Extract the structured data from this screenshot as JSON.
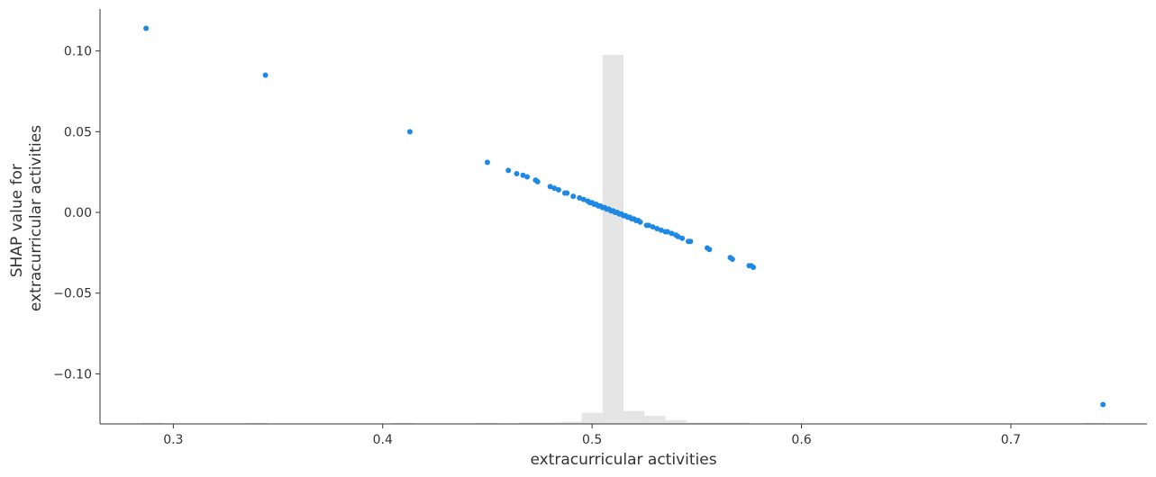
{
  "chart_data": {
    "type": "scatter",
    "xlabel": "extracurricular activities",
    "ylabel_lines": [
      "SHAP value for",
      "extracurricular activities"
    ],
    "xlim": [
      0.265,
      0.765
    ],
    "ylim": [
      -0.131,
      0.126
    ],
    "x_ticks": [
      {
        "value": 0.3,
        "label": "0.3"
      },
      {
        "value": 0.4,
        "label": "0.4"
      },
      {
        "value": 0.5,
        "label": "0.5"
      },
      {
        "value": 0.6,
        "label": "0.6"
      },
      {
        "value": 0.7,
        "label": "0.7"
      }
    ],
    "y_ticks": [
      {
        "value": 0.1,
        "label": "0.10"
      },
      {
        "value": 0.05,
        "label": "0.05"
      },
      {
        "value": 0.0,
        "label": "0.00"
      },
      {
        "value": -0.05,
        "label": "−0.05"
      },
      {
        "value": -0.1,
        "label": "−0.10"
      }
    ],
    "point_color": "#1e88e5",
    "histogram_color": "#e5e5e5",
    "histogram_bins": [
      {
        "x0": 0.285,
        "x1": 0.295,
        "frac": 0.002
      },
      {
        "x0": 0.335,
        "x1": 0.345,
        "frac": 0.002
      },
      {
        "x0": 0.405,
        "x1": 0.415,
        "frac": 0.002
      },
      {
        "x0": 0.445,
        "x1": 0.455,
        "frac": 0.002
      },
      {
        "x0": 0.465,
        "x1": 0.485,
        "frac": 0.004
      },
      {
        "x0": 0.485,
        "x1": 0.495,
        "frac": 0.006
      },
      {
        "x0": 0.495,
        "x1": 0.505,
        "frac": 0.03
      },
      {
        "x0": 0.505,
        "x1": 0.515,
        "frac": 1.0
      },
      {
        "x0": 0.515,
        "x1": 0.525,
        "frac": 0.035
      },
      {
        "x0": 0.525,
        "x1": 0.535,
        "frac": 0.022
      },
      {
        "x0": 0.535,
        "x1": 0.545,
        "frac": 0.01
      },
      {
        "x0": 0.545,
        "x1": 0.565,
        "frac": 0.004
      },
      {
        "x0": 0.565,
        "x1": 0.575,
        "frac": 0.004
      },
      {
        "x0": 0.735,
        "x1": 0.745,
        "frac": 0.002
      }
    ],
    "points": [
      {
        "x": 0.287,
        "y": 0.114
      },
      {
        "x": 0.344,
        "y": 0.085
      },
      {
        "x": 0.413,
        "y": 0.05
      },
      {
        "x": 0.45,
        "y": 0.031
      },
      {
        "x": 0.46,
        "y": 0.026
      },
      {
        "x": 0.464,
        "y": 0.024
      },
      {
        "x": 0.467,
        "y": 0.023
      },
      {
        "x": 0.469,
        "y": 0.022
      },
      {
        "x": 0.473,
        "y": 0.02
      },
      {
        "x": 0.474,
        "y": 0.019
      },
      {
        "x": 0.48,
        "y": 0.016
      },
      {
        "x": 0.482,
        "y": 0.015
      },
      {
        "x": 0.484,
        "y": 0.014
      },
      {
        "x": 0.487,
        "y": 0.012
      },
      {
        "x": 0.488,
        "y": 0.012
      },
      {
        "x": 0.491,
        "y": 0.01
      },
      {
        "x": 0.494,
        "y": 0.009
      },
      {
        "x": 0.496,
        "y": 0.008
      },
      {
        "x": 0.498,
        "y": 0.007
      },
      {
        "x": 0.499,
        "y": 0.006
      },
      {
        "x": 0.5,
        "y": 0.006
      },
      {
        "x": 0.501,
        "y": 0.005
      },
      {
        "x": 0.502,
        "y": 0.005
      },
      {
        "x": 0.503,
        "y": 0.004
      },
      {
        "x": 0.504,
        "y": 0.004
      },
      {
        "x": 0.505,
        "y": 0.003
      },
      {
        "x": 0.506,
        "y": 0.003
      },
      {
        "x": 0.507,
        "y": 0.002
      },
      {
        "x": 0.508,
        "y": 0.002
      },
      {
        "x": 0.509,
        "y": 0.001
      },
      {
        "x": 0.51,
        "y": 0.001
      },
      {
        "x": 0.511,
        "y": 0.0
      },
      {
        "x": 0.512,
        "y": 0.0
      },
      {
        "x": 0.513,
        "y": -0.001
      },
      {
        "x": 0.514,
        "y": -0.001
      },
      {
        "x": 0.515,
        "y": -0.002
      },
      {
        "x": 0.516,
        "y": -0.002
      },
      {
        "x": 0.517,
        "y": -0.003
      },
      {
        "x": 0.518,
        "y": -0.003
      },
      {
        "x": 0.519,
        "y": -0.004
      },
      {
        "x": 0.52,
        "y": -0.004
      },
      {
        "x": 0.521,
        "y": -0.005
      },
      {
        "x": 0.522,
        "y": -0.005
      },
      {
        "x": 0.523,
        "y": -0.006
      },
      {
        "x": 0.526,
        "y": -0.008
      },
      {
        "x": 0.527,
        "y": -0.008
      },
      {
        "x": 0.529,
        "y": -0.009
      },
      {
        "x": 0.531,
        "y": -0.01
      },
      {
        "x": 0.533,
        "y": -0.011
      },
      {
        "x": 0.535,
        "y": -0.012
      },
      {
        "x": 0.536,
        "y": -0.012
      },
      {
        "x": 0.538,
        "y": -0.013
      },
      {
        "x": 0.54,
        "y": -0.014
      },
      {
        "x": 0.541,
        "y": -0.015
      },
      {
        "x": 0.543,
        "y": -0.016
      },
      {
        "x": 0.546,
        "y": -0.018
      },
      {
        "x": 0.547,
        "y": -0.018
      },
      {
        "x": 0.555,
        "y": -0.022
      },
      {
        "x": 0.556,
        "y": -0.023
      },
      {
        "x": 0.566,
        "y": -0.028
      },
      {
        "x": 0.567,
        "y": -0.029
      },
      {
        "x": 0.575,
        "y": -0.033
      },
      {
        "x": 0.576,
        "y": -0.033
      },
      {
        "x": 0.577,
        "y": -0.034
      },
      {
        "x": 0.744,
        "y": -0.119
      }
    ]
  }
}
